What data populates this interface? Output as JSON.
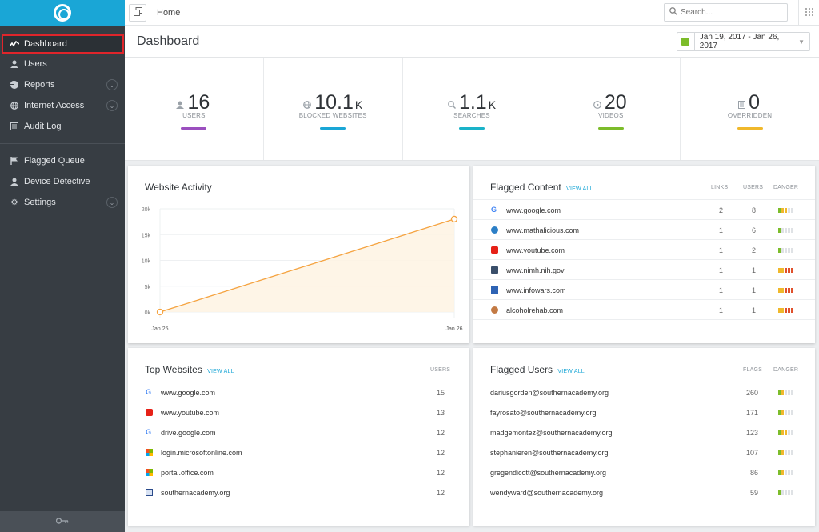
{
  "sidebar": {
    "items": [
      {
        "label": "Dashboard",
        "icon": "activity-icon",
        "active": true,
        "expandable": false
      },
      {
        "label": "Users",
        "icon": "user-icon",
        "expandable": false
      },
      {
        "label": "Reports",
        "icon": "pie-chart-icon",
        "expandable": true
      },
      {
        "label": "Internet Access",
        "icon": "globe-icon",
        "expandable": true
      },
      {
        "label": "Audit Log",
        "icon": "log-icon",
        "expandable": false
      }
    ],
    "items2": [
      {
        "label": "Flagged Queue",
        "icon": "flag-icon",
        "expandable": false
      },
      {
        "label": "Device Detective",
        "icon": "user-icon",
        "expandable": false
      },
      {
        "label": "Settings",
        "icon": "gear-icon",
        "expandable": true
      }
    ]
  },
  "topbar": {
    "breadcrumb": "Home",
    "search_placeholder": "Search..."
  },
  "header": {
    "title": "Dashboard",
    "date_range": "Jan 19, 2017 - Jan 26, 2017"
  },
  "stats": [
    {
      "value": "16",
      "suffix": "",
      "label": "USERS",
      "icon": "user-icon",
      "color": "#9b4fbf"
    },
    {
      "value": "10.1",
      "suffix": "K",
      "label": "BLOCKED WEBSITES",
      "icon": "globe-icon",
      "color": "#1aa6d6"
    },
    {
      "value": "1.1",
      "suffix": "K",
      "label": "SEARCHES",
      "icon": "search-icon",
      "color": "#1ab3c9"
    },
    {
      "value": "20",
      "suffix": "",
      "label": "VIDEOS",
      "icon": "play-icon",
      "color": "#7cbc2a"
    },
    {
      "value": "0",
      "suffix": "",
      "label": "OVERRIDDEN",
      "icon": "document-icon",
      "color": "#f0b82b"
    }
  ],
  "website_activity": {
    "title": "Website Activity",
    "chart_data": {
      "type": "line",
      "categories": [
        "Jan 25",
        "Jan 26"
      ],
      "series": [
        {
          "values": [
            0,
            18000
          ]
        }
      ],
      "yticks": [
        "20k",
        "15k",
        "10k",
        "5k",
        "0k"
      ],
      "ylim": [
        0,
        20000
      ],
      "color": "#f5a340"
    }
  },
  "flagged_content": {
    "title": "Flagged Content",
    "view_all": "VIEW ALL",
    "col_links": "LINKS",
    "col_users": "USERS",
    "col_danger": "DANGER",
    "rows": [
      {
        "site": "www.google.com",
        "icon": "google-icon",
        "links": "2",
        "users": "8",
        "danger": 3
      },
      {
        "site": "www.mathalicious.com",
        "icon": "mathalicious-icon",
        "links": "1",
        "users": "6",
        "danger": 1
      },
      {
        "site": "www.youtube.com",
        "icon": "youtube-icon",
        "links": "1",
        "users": "2",
        "danger": 1
      },
      {
        "site": "www.nimh.nih.gov",
        "icon": "nimh-icon",
        "links": "1",
        "users": "1",
        "danger": 5
      },
      {
        "site": "www.infowars.com",
        "icon": "infowars-icon",
        "links": "1",
        "users": "1",
        "danger": 5
      },
      {
        "site": "alcoholrehab.com",
        "icon": "alcoholrehab-icon",
        "links": "1",
        "users": "1",
        "danger": 5
      }
    ]
  },
  "top_websites": {
    "title": "Top Websites",
    "view_all": "VIEW ALL",
    "col_users": "USERS",
    "rows": [
      {
        "site": "www.google.com",
        "icon": "google-icon",
        "users": "15"
      },
      {
        "site": "www.youtube.com",
        "icon": "youtube-icon",
        "users": "13"
      },
      {
        "site": "drive.google.com",
        "icon": "google-icon",
        "users": "12"
      },
      {
        "site": "login.microsoftonline.com",
        "icon": "microsoft-icon",
        "users": "12"
      },
      {
        "site": "portal.office.com",
        "icon": "microsoft-icon",
        "users": "12"
      },
      {
        "site": "southernacademy.org",
        "icon": "southernacademy-icon",
        "users": "12"
      }
    ]
  },
  "flagged_users": {
    "title": "Flagged Users",
    "view_all": "VIEW ALL",
    "col_flags": "FLAGS",
    "col_danger": "DANGER",
    "rows": [
      {
        "user": "dariusgorden@southernacademy.org",
        "flags": "260",
        "danger": 2
      },
      {
        "user": "fayrosato@southernacademy.org",
        "flags": "171",
        "danger": 2
      },
      {
        "user": "madgemontez@southernacademy.org",
        "flags": "123",
        "danger": 3
      },
      {
        "user": "stephanieren@southernacademy.org",
        "flags": "107",
        "danger": 2
      },
      {
        "user": "gregendicott@southernacademy.org",
        "flags": "86",
        "danger": 2
      },
      {
        "user": "wendyward@southernacademy.org",
        "flags": "59",
        "danger": 1
      }
    ]
  },
  "colors": {
    "accent": "#1aa6d6",
    "sidebar": "#373d43",
    "active_outline": "#e0252b",
    "danger_low": "#7cbc2a",
    "danger_mid": "#f0b82b",
    "danger_high": "#e0502b"
  }
}
